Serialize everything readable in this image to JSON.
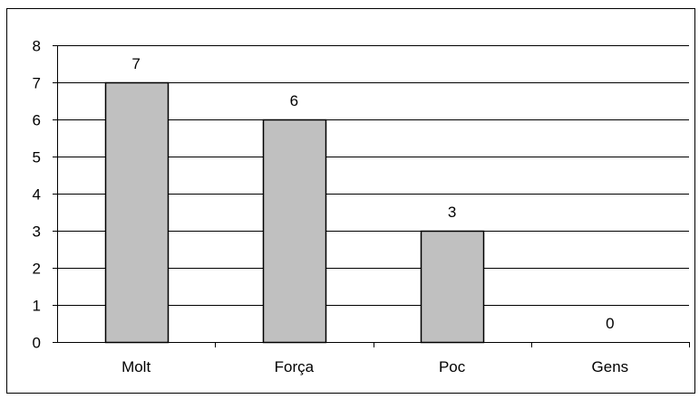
{
  "chart_data": {
    "type": "bar",
    "categories": [
      "Molt",
      "Força",
      "Poc",
      "Gens"
    ],
    "values": [
      7,
      6,
      3,
      0
    ],
    "data_labels": [
      "7",
      "6",
      "3",
      "0"
    ],
    "yticks": [
      "0",
      "1",
      "2",
      "3",
      "4",
      "5",
      "6",
      "7",
      "8"
    ],
    "ylim": [
      0,
      8
    ],
    "grid": true,
    "legend": "none",
    "bar_color": "#C0C0C0",
    "bar_border_color": "#000000",
    "gridline_color": "#000000"
  }
}
